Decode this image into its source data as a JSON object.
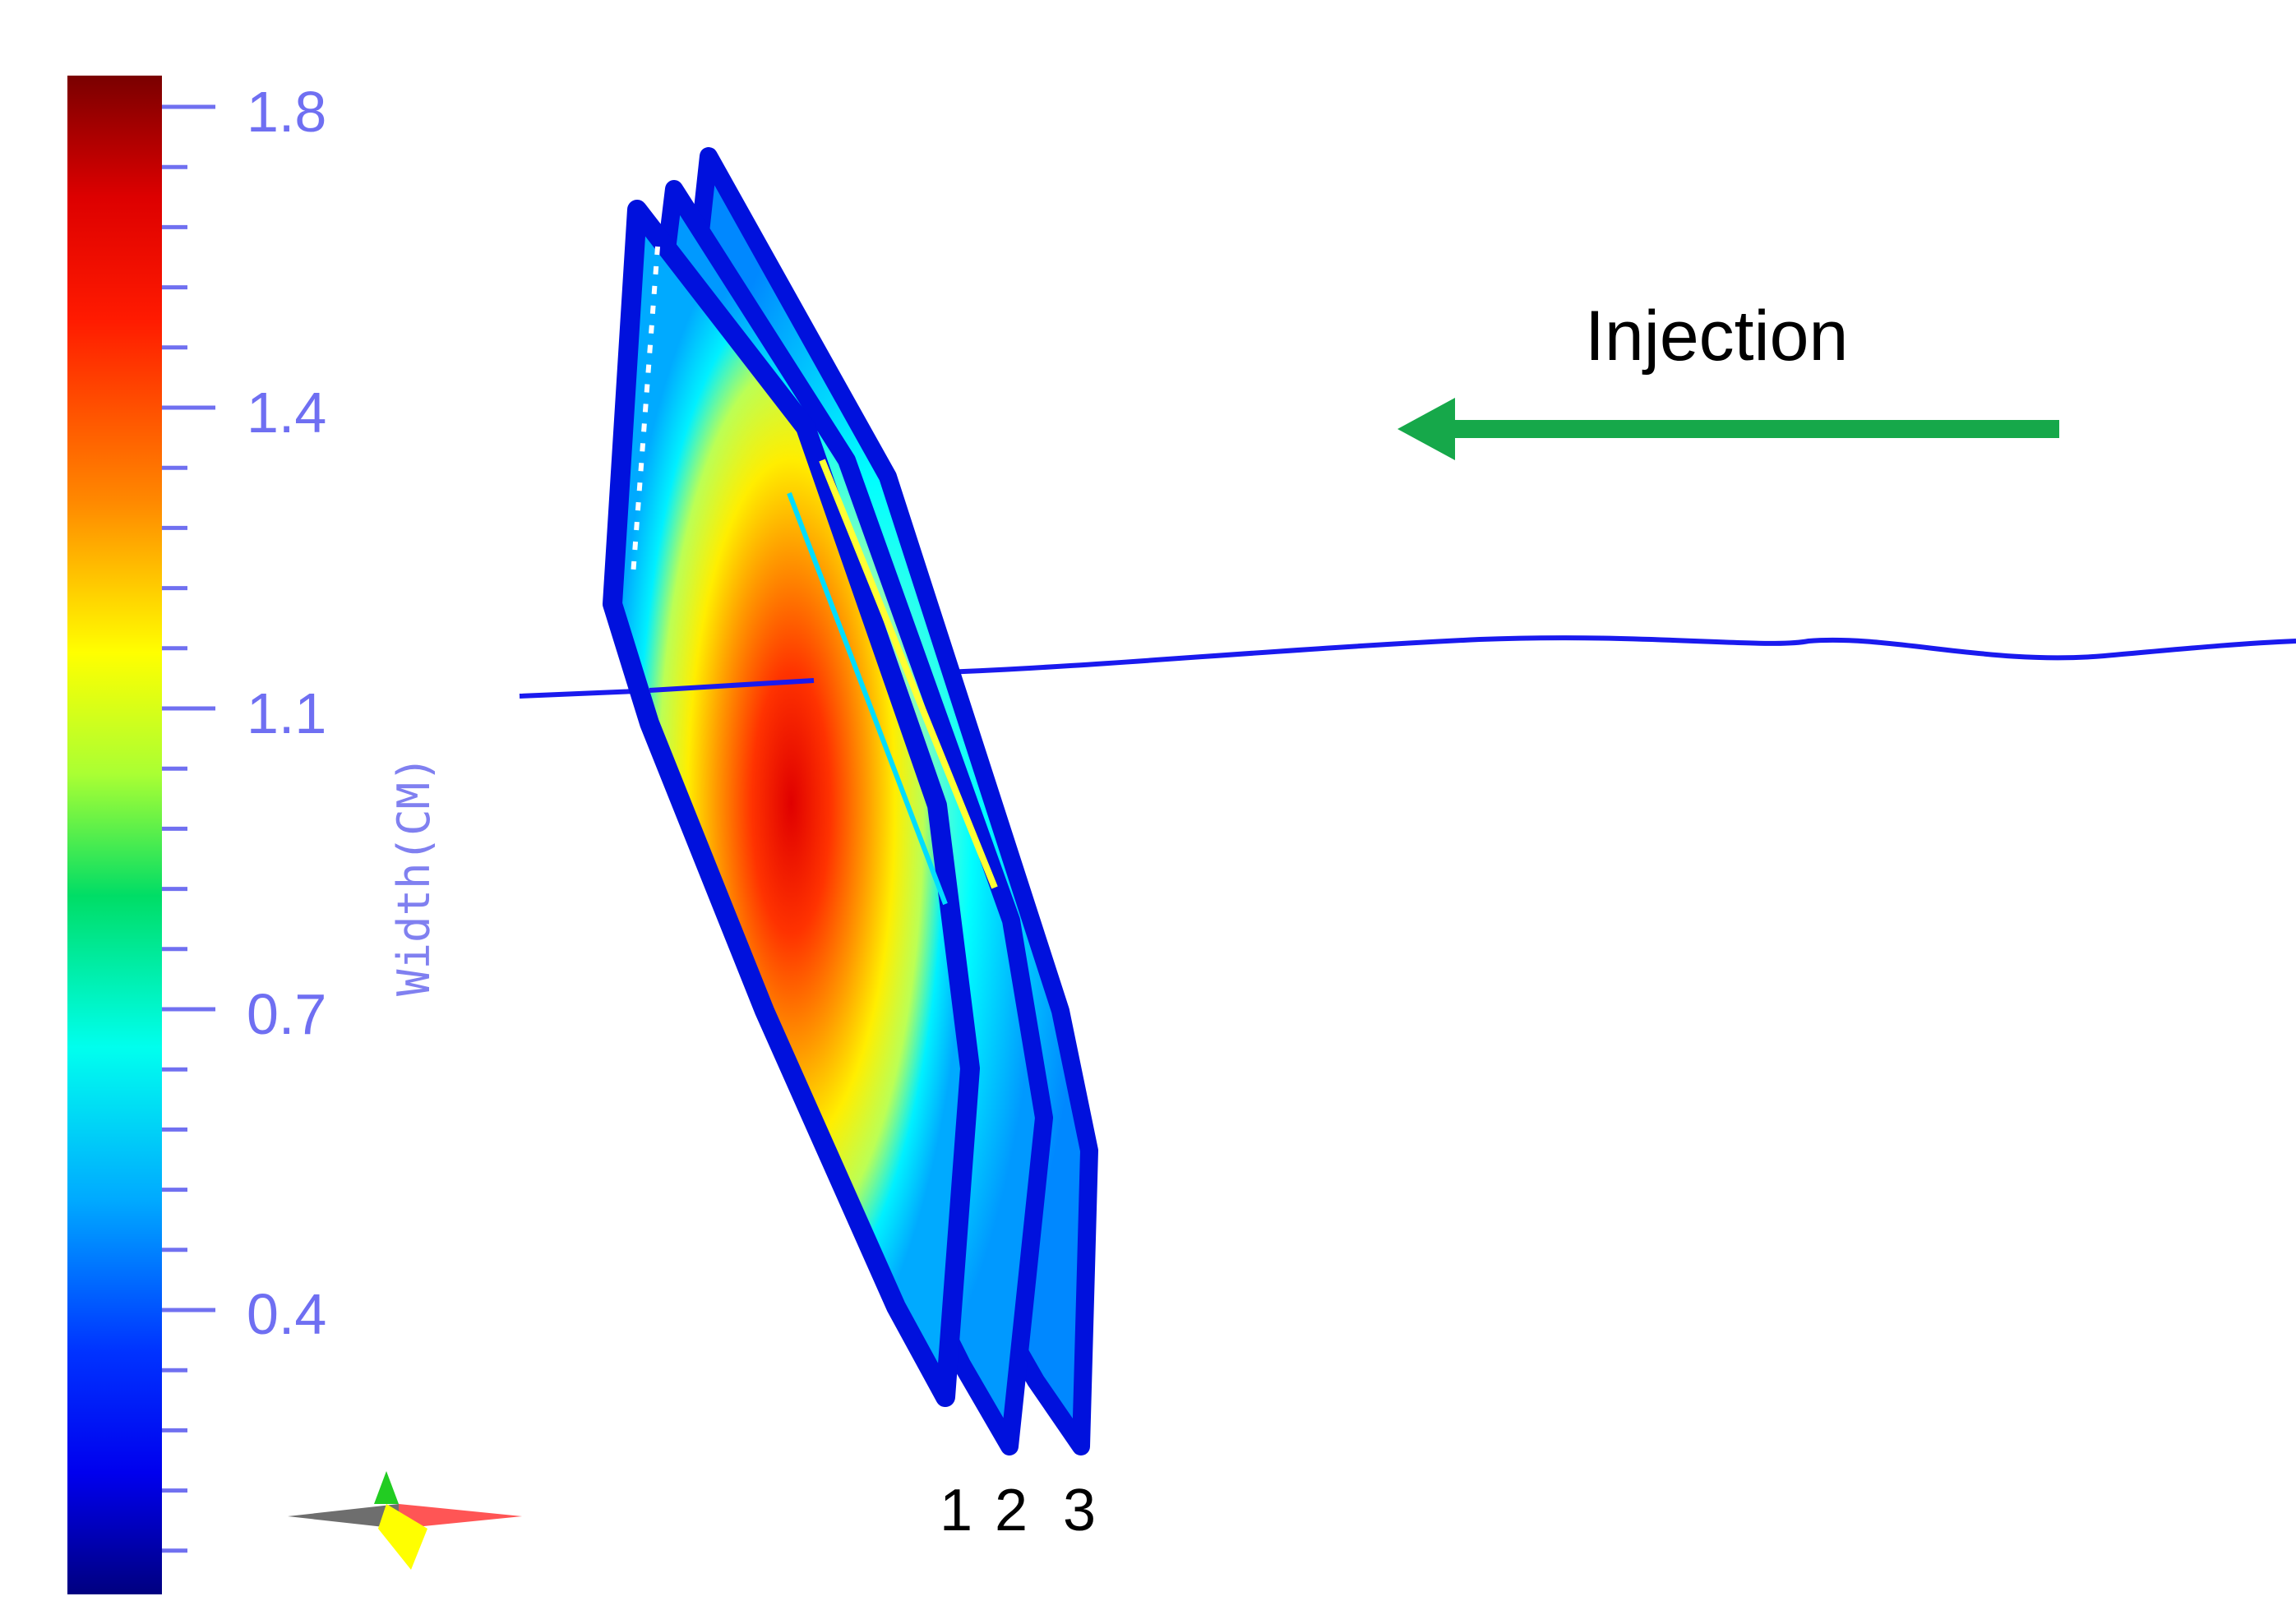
{
  "colorbar": {
    "title": "Width(CM)",
    "tick_labels": [
      "1.8",
      "1.4",
      "1.1",
      "0.7",
      "0.4"
    ],
    "label_color": "#6f6ff2",
    "gradient_colors": [
      "#7a0000",
      "#ff0000",
      "#ff8800",
      "#ffff00",
      "#00dd66",
      "#00ffff",
      "#0088ff",
      "#0000ff",
      "#000088"
    ]
  },
  "annotation": {
    "text": "Injection",
    "arrow_direction": "left",
    "arrow_color": "#16a84a"
  },
  "fractures": {
    "labels": [
      "1",
      "2",
      "3"
    ],
    "edge_color": "#0011dd"
  },
  "wellbore": {
    "color": "#1a1aee"
  },
  "orientation_icon": {
    "name": "compass-icon",
    "colors": [
      "#6e6e6e",
      "#22cc22",
      "#ff5555",
      "#ffff00"
    ]
  }
}
